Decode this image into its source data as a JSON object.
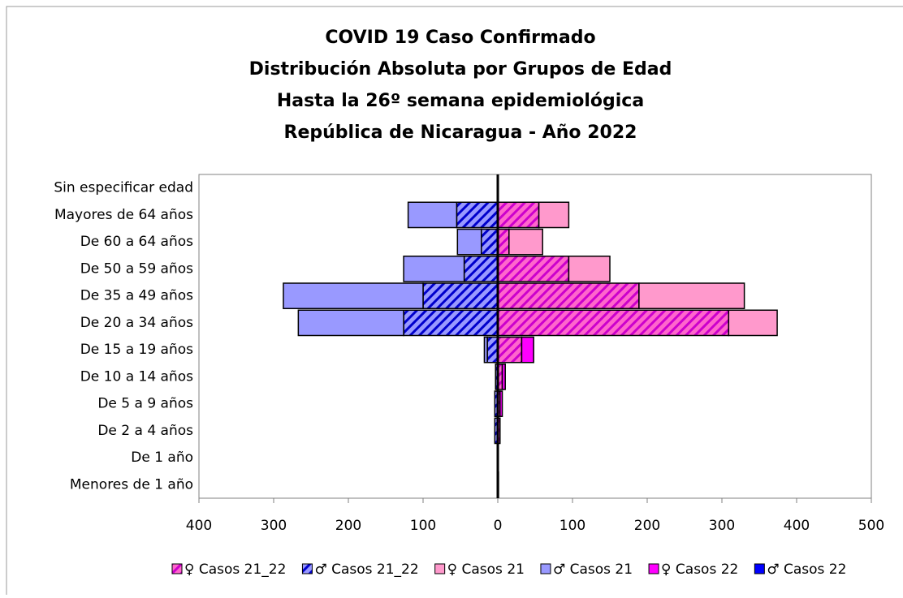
{
  "chart_data": {
    "type": "pyramid",
    "title": [
      "COVID 19 Caso Confirmado",
      "Distribución Absoluta por Grupos de Edad",
      "Hasta la 26º semana epidemiológica",
      "República de Nicaragua - Año 2022"
    ],
    "categories": [
      "Sin especificar edad",
      "Mayores de 64 años",
      "De 60 a 64 años",
      "De 50 a 59 años",
      "De 35 a 49 años",
      "De 20 a 34 años",
      "De 15 a 19 años",
      "De 10 a 14 años",
      "De 5 a 9 años",
      "De 2 a 4 años",
      "De 1 año",
      "Menores de 1 año"
    ],
    "series": [
      {
        "name": "♀ Casos 21_22",
        "color": "#ff66cc",
        "pattern": "hatch",
        "hatch_color": "#cc00cc",
        "values": [
          0,
          55,
          15,
          95,
          189,
          309,
          32,
          6,
          3,
          3,
          0,
          1
        ]
      },
      {
        "name": "♂ Casos 21_22",
        "color": "#9999ff",
        "pattern": "hatch",
        "hatch_color": "#0000cc",
        "values": [
          0,
          -55,
          -22,
          -45,
          -100,
          -126,
          -14,
          -3,
          -4,
          -4,
          0,
          0
        ]
      },
      {
        "name": "♀ Casos 21",
        "color": "#ff99cc",
        "values": [
          0,
          40,
          45,
          55,
          141,
          65,
          0,
          0,
          0,
          0,
          0,
          0
        ]
      },
      {
        "name": "♂ Casos 21",
        "color": "#9999ff",
        "values": [
          0,
          -65,
          -32,
          -81,
          -187,
          -141,
          -4,
          0,
          0,
          0,
          0,
          0
        ]
      },
      {
        "name": "♀ Casos 22",
        "color": "#ff00ff",
        "values": [
          0,
          0,
          0,
          0,
          0,
          0,
          16,
          4,
          3,
          0,
          0,
          0
        ]
      },
      {
        "name": "♂ Casos 22",
        "color": "#0000ff",
        "values": [
          0,
          0,
          0,
          0,
          0,
          0,
          0,
          0,
          0,
          0,
          0,
          0
        ]
      }
    ],
    "xlim": [
      -400,
      500
    ],
    "xticks": [
      {
        "value": -400,
        "label": "400"
      },
      {
        "value": -300,
        "label": "300"
      },
      {
        "value": -200,
        "label": "200"
      },
      {
        "value": -100,
        "label": "100"
      },
      0,
      100,
      200,
      300,
      400,
      500
    ],
    "legend": "bottom"
  }
}
